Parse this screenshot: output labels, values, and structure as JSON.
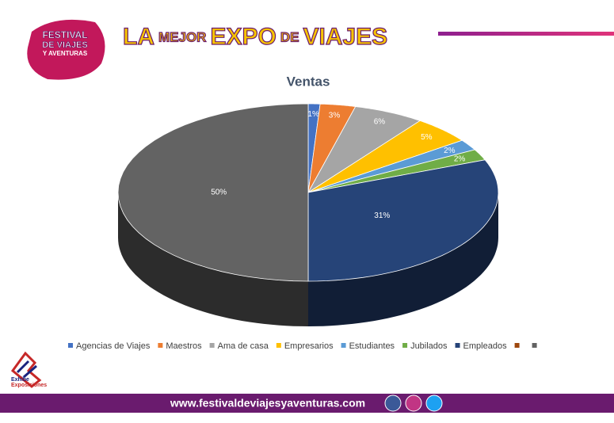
{
  "header": {
    "title_words": [
      "LA",
      "MEJOR",
      "EXPO",
      "DE",
      "VIAJES"
    ],
    "logo_lines": [
      "FESTIVAL",
      "DE VIAJES",
      "Y AVENTURAS"
    ]
  },
  "brand": [
    "Exhibe",
    "Exposiciones"
  ],
  "footer": {
    "url": "www.festivaldeviajesyaventuras.com"
  },
  "chart_data": {
    "type": "pie",
    "title": "Ventas",
    "categories": [
      "Agencias de Viajes",
      "Maestros",
      "Ama de casa",
      "Empresarios",
      "Estudiantes",
      "Jubilados",
      "Empleados",
      null,
      null
    ],
    "values": [
      1,
      3,
      6,
      5,
      2,
      2,
      31,
      0,
      50
    ],
    "value_labels": [
      "1%",
      "3%",
      "6%",
      "5%",
      "2%",
      "2%",
      "31%",
      null,
      "50%"
    ],
    "colors": [
      "#4472c4",
      "#ed7d31",
      "#a5a5a5",
      "#ffc000",
      "#5b9bd5",
      "#70ad47",
      "#264478",
      "#9e480e",
      "#636363"
    ],
    "legend": "bottom"
  }
}
